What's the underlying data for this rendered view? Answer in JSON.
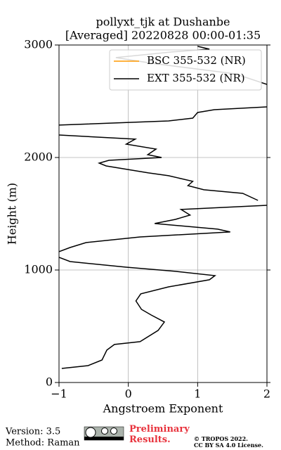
{
  "chart_data": {
    "type": "line",
    "title": "pollyxt_tjk at Dushanbe",
    "subtitle": "[Averaged] 20220828 00:00-01:35",
    "xlabel": "Angstroem Exponent",
    "ylabel": "Height (m)",
    "xlim": [
      -1,
      2
    ],
    "ylim": [
      0,
      3000
    ],
    "xticks": [
      {
        "value": -1,
        "label": "−1"
      },
      0,
      1,
      2
    ],
    "yticks": [
      0,
      1000,
      2000,
      3000
    ],
    "grid": true,
    "legend": "upper right",
    "series": [
      {
        "name": "BSC 355-532 (NR)",
        "color": "#ff9900",
        "x": [],
        "values": []
      },
      {
        "name": "EXT 355-532 (NR)",
        "color": "#000000",
        "x": [
          -0.96,
          -0.58,
          -0.38,
          -0.31,
          -0.2,
          0.17,
          0.43,
          0.52,
          0.33,
          0.19,
          0.11,
          0.18,
          0.58,
          1.17,
          1.25,
          0.68,
          -0.03,
          -0.84,
          -1.0,
          null,
          -1.0,
          -0.84,
          -0.61,
          0.17,
          1.47,
          1.29,
          0.38,
          0.68,
          0.89,
          0.76,
          2.0,
          null,
          1.87,
          1.65,
          1.09,
          0.86,
          0.93,
          0.58,
          0.29,
          -0.32,
          -0.42,
          -0.28,
          0.48,
          0.28,
          0.4,
          -0.03,
          0.1,
          -1.0,
          null,
          -1.0,
          0.58,
          0.93,
          1.0,
          1.24,
          2.0,
          null,
          2.0,
          1.54,
          0.33,
          -0.18,
          0.63,
          1.17,
          1.0
        ],
        "values": [
          125,
          150,
          200,
          288,
          338,
          363,
          463,
          538,
          600,
          650,
          725,
          788,
          850,
          913,
          950,
          988,
          1025,
          1075,
          1113,
          null,
          1163,
          1200,
          1244,
          1294,
          1338,
          1363,
          1413,
          1450,
          1488,
          1538,
          1575,
          null,
          1619,
          1681,
          1713,
          1750,
          1788,
          1838,
          1863,
          1925,
          1950,
          1975,
          2000,
          2025,
          2075,
          2119,
          2163,
          2200,
          null,
          2288,
          2325,
          2350,
          2400,
          2425,
          2450,
          null,
          2650,
          2744,
          2838,
          2888,
          2938,
          2963,
          2988
        ]
      }
    ]
  },
  "footer": {
    "version": "Version: 3.5",
    "method": "Method: Raman",
    "status": "Preliminary Results.",
    "copyright": "© TROPOS 2022.",
    "license": "CC BY SA 4.0 License."
  }
}
